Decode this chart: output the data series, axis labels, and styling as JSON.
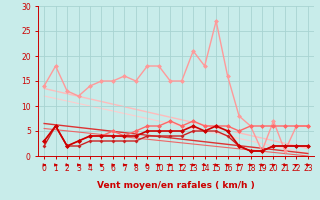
{
  "xlabel": "Vent moyen/en rafales ( km/h )",
  "background_color": "#c8ecea",
  "grid_color": "#a8d4d2",
  "xlim": [
    -0.5,
    23.5
  ],
  "ylim": [
    0,
    30
  ],
  "yticks": [
    0,
    5,
    10,
    15,
    20,
    25,
    30
  ],
  "xticks": [
    0,
    1,
    2,
    3,
    4,
    5,
    6,
    7,
    8,
    9,
    10,
    11,
    12,
    13,
    14,
    15,
    16,
    17,
    18,
    19,
    20,
    21,
    22,
    23
  ],
  "series": [
    {
      "name": "rafales_light",
      "x": [
        0,
        1,
        2,
        3,
        4,
        5,
        6,
        7,
        8,
        9,
        10,
        11,
        12,
        13,
        14,
        15,
        16,
        17,
        18,
        19,
        20,
        21,
        22,
        23
      ],
      "y": [
        14,
        18,
        13,
        12,
        14,
        15,
        15,
        16,
        15,
        18,
        18,
        15,
        15,
        21,
        18,
        27,
        16,
        8,
        6,
        1,
        7,
        1,
        6,
        6
      ],
      "color": "#ff9999",
      "lw": 1.0,
      "marker": "D",
      "markersize": 2.5,
      "zorder": 3,
      "linestyle": "-"
    },
    {
      "name": "vent_light",
      "x": [
        0,
        1,
        2,
        3,
        4,
        5,
        6,
        7,
        8,
        9,
        10,
        11,
        12,
        13,
        14,
        15,
        16,
        17,
        18,
        19,
        20,
        21,
        22,
        23
      ],
      "y": [
        3,
        6,
        2,
        3,
        4,
        4,
        5,
        4,
        5,
        6,
        6,
        7,
        6,
        7,
        6,
        6,
        6,
        5,
        6,
        6,
        6,
        6,
        6,
        6
      ],
      "color": "#ff6666",
      "lw": 1.0,
      "marker": "D",
      "markersize": 2.5,
      "zorder": 3,
      "linestyle": "-"
    },
    {
      "name": "rafales_dark",
      "x": [
        0,
        1,
        2,
        3,
        4,
        5,
        6,
        7,
        8,
        9,
        10,
        11,
        12,
        13,
        14,
        15,
        16,
        17,
        18,
        19,
        20,
        21,
        22,
        23
      ],
      "y": [
        3,
        6,
        2,
        3,
        4,
        4,
        4,
        4,
        4,
        5,
        5,
        5,
        5,
        6,
        5,
        6,
        5,
        2,
        1,
        1,
        2,
        2,
        2,
        2
      ],
      "color": "#cc0000",
      "lw": 1.2,
      "marker": "D",
      "markersize": 2.5,
      "zorder": 4,
      "linestyle": "-"
    },
    {
      "name": "vent_dark",
      "x": [
        0,
        1,
        2,
        3,
        4,
        5,
        6,
        7,
        8,
        9,
        10,
        11,
        12,
        13,
        14,
        15,
        16,
        17,
        18,
        19,
        20,
        21,
        22,
        23
      ],
      "y": [
        2,
        6,
        2,
        2,
        3,
        3,
        3,
        3,
        3,
        4,
        4,
        4,
        4,
        5,
        5,
        5,
        4,
        2,
        1,
        1,
        2,
        2,
        2,
        2
      ],
      "color": "#cc2222",
      "lw": 1.0,
      "marker": "D",
      "markersize": 2.0,
      "zorder": 3,
      "linestyle": "-"
    },
    {
      "name": "trend_light1",
      "x": [
        0,
        23
      ],
      "y": [
        13.5,
        1.5
      ],
      "color": "#ffbbbb",
      "lw": 1.0,
      "marker": null,
      "markersize": 0,
      "zorder": 1,
      "linestyle": "-"
    },
    {
      "name": "trend_light2",
      "x": [
        0,
        23
      ],
      "y": [
        12,
        0.5
      ],
      "color": "#ffcccc",
      "lw": 0.8,
      "marker": null,
      "markersize": 0,
      "zorder": 1,
      "linestyle": "-"
    },
    {
      "name": "trend_dark1",
      "x": [
        0,
        23
      ],
      "y": [
        6.5,
        0.5
      ],
      "color": "#dd3333",
      "lw": 1.0,
      "marker": null,
      "markersize": 0,
      "zorder": 2,
      "linestyle": "-"
    },
    {
      "name": "trend_dark2",
      "x": [
        0,
        23
      ],
      "y": [
        5.5,
        0
      ],
      "color": "#ee6666",
      "lw": 0.8,
      "marker": null,
      "markersize": 0,
      "zorder": 2,
      "linestyle": "-"
    }
  ],
  "arrow_color": "#cc0000",
  "xlabel_fontsize": 6.5,
  "tick_fontsize": 5.5,
  "tick_color": "#cc0000",
  "axis_color": "#cc0000",
  "arrow_angles": [
    0,
    0,
    -15,
    0,
    0,
    15,
    0,
    0,
    -15,
    -25,
    20,
    0,
    35,
    0,
    -35,
    0,
    25,
    -15,
    0,
    0,
    15,
    -25,
    40,
    -25
  ]
}
